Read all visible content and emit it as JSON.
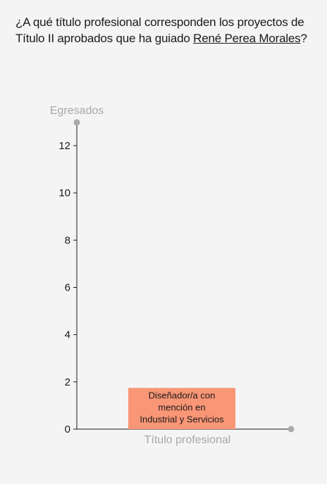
{
  "question": {
    "prefix": "¿A qué título profesional corresponden los proyectos de Título II aprobados que ha guiado ",
    "person_link": "René Perea Morales",
    "suffix": "?"
  },
  "colors": {
    "bar": "#f99676",
    "axis": "#1a1a1a",
    "axis_title": "#a8a8a8",
    "axis_end_dot": "#aaaaaa"
  },
  "chart_data": {
    "type": "bar",
    "categories": [
      "Diseñador/a con mención en Industrial y Servicios"
    ],
    "category_label_lines": [
      [
        "Diseñador/a con",
        "mención en",
        "Industrial y Servicios"
      ]
    ],
    "values": [
      1
    ],
    "ylabel": "Egresados",
    "xlabel": "Título profesional",
    "ylim": [
      0,
      13
    ],
    "yticks": [
      0,
      2,
      4,
      6,
      8,
      10,
      12
    ],
    "grid": false
  }
}
